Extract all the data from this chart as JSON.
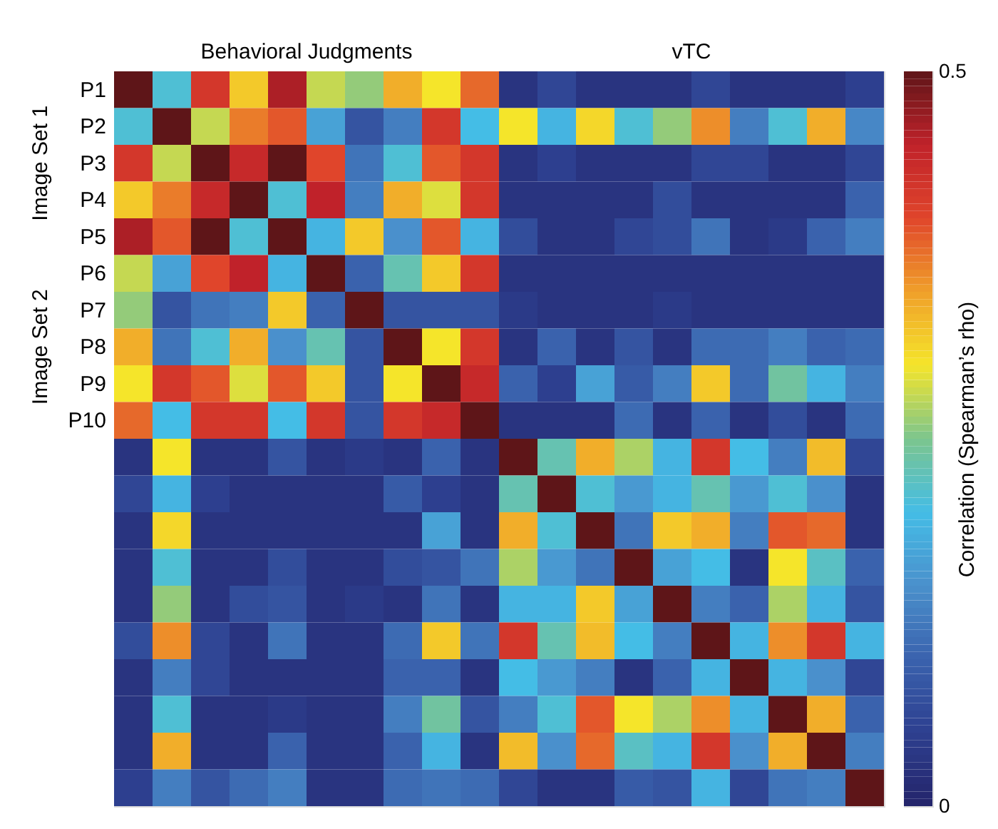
{
  "chart_data": {
    "type": "heatmap",
    "annotations": [
      "Behavioral Judgments",
      "vTC",
      "Image Set 1",
      "Image Set 2"
    ],
    "clabel": "Correlation (Spearman’s rho)",
    "clim": [
      0,
      0.5
    ],
    "cticks": [
      0,
      0.5
    ],
    "categories": [
      null,
      null,
      null,
      null,
      null,
      null,
      null,
      null,
      null,
      null,
      null,
      null,
      null,
      null,
      null,
      null,
      null,
      null,
      null,
      null
    ],
    "y_categories": [
      "P1",
      "P2",
      "P3",
      "P4",
      "P5",
      "P6",
      "P7",
      "P8",
      "P9",
      "P10",
      null,
      null,
      null,
      null,
      null,
      null,
      null,
      null,
      null,
      null
    ],
    "cells": [
      [
        0.5,
        0.21,
        0.42,
        0.32,
        0.46,
        0.28,
        0.26,
        0.34,
        0.3,
        0.38,
        0.03,
        0.06,
        0.03,
        0.03,
        0.03,
        0.06,
        0.03,
        0.03,
        0.03,
        0.05
      ],
      [
        0.21,
        0.5,
        0.28,
        0.37,
        0.39,
        0.17,
        0.08,
        0.13,
        0.42,
        0.2,
        0.3,
        0.19,
        0.31,
        0.21,
        0.26,
        0.36,
        0.13,
        0.21,
        0.34,
        0.14
      ],
      [
        0.42,
        0.28,
        0.5,
        0.44,
        0.5,
        0.4,
        0.12,
        0.21,
        0.39,
        0.42,
        0.03,
        0.05,
        0.03,
        0.03,
        0.03,
        0.06,
        0.06,
        0.03,
        0.03,
        0.06
      ],
      [
        0.32,
        0.37,
        0.44,
        0.5,
        0.21,
        0.45,
        0.13,
        0.34,
        0.29,
        0.42,
        0.03,
        0.03,
        0.03,
        0.03,
        0.07,
        0.03,
        0.03,
        0.03,
        0.03,
        0.1
      ],
      [
        0.46,
        0.39,
        0.5,
        0.21,
        0.5,
        0.19,
        0.32,
        0.15,
        0.39,
        0.19,
        0.07,
        0.03,
        0.03,
        0.06,
        0.07,
        0.12,
        0.03,
        0.04,
        0.1,
        0.13
      ],
      [
        0.28,
        0.17,
        0.4,
        0.45,
        0.19,
        0.5,
        0.1,
        0.23,
        0.32,
        0.42,
        0.03,
        0.03,
        0.03,
        0.03,
        0.03,
        0.03,
        0.03,
        0.03,
        0.03,
        0.03
      ],
      [
        0.26,
        0.08,
        0.12,
        0.13,
        0.32,
        0.1,
        0.5,
        0.08,
        0.08,
        0.08,
        0.04,
        0.03,
        0.03,
        0.03,
        0.04,
        0.03,
        0.03,
        0.03,
        0.03,
        0.03
      ],
      [
        0.34,
        0.12,
        0.21,
        0.34,
        0.15,
        0.23,
        0.08,
        0.5,
        0.3,
        0.42,
        0.03,
        0.1,
        0.03,
        0.08,
        0.03,
        0.11,
        0.11,
        0.13,
        0.1,
        0.11
      ],
      [
        0.3,
        0.42,
        0.39,
        0.29,
        0.39,
        0.32,
        0.08,
        0.3,
        0.5,
        0.44,
        0.1,
        0.05,
        0.17,
        0.09,
        0.13,
        0.32,
        0.11,
        0.24,
        0.19,
        0.13
      ],
      [
        0.38,
        0.2,
        0.42,
        0.42,
        0.2,
        0.42,
        0.08,
        0.42,
        0.44,
        0.5,
        0.03,
        0.03,
        0.03,
        0.11,
        0.03,
        0.1,
        0.03,
        0.07,
        0.03,
        0.11
      ],
      [
        0.03,
        0.3,
        0.03,
        0.03,
        0.08,
        0.03,
        0.04,
        0.03,
        0.1,
        0.03,
        0.5,
        0.23,
        0.34,
        0.27,
        0.19,
        0.42,
        0.2,
        0.13,
        0.33,
        0.06
      ],
      [
        0.06,
        0.19,
        0.05,
        0.03,
        0.03,
        0.03,
        0.03,
        0.09,
        0.05,
        0.03,
        0.23,
        0.5,
        0.21,
        0.16,
        0.19,
        0.23,
        0.16,
        0.21,
        0.15,
        0.03
      ],
      [
        0.03,
        0.31,
        0.03,
        0.03,
        0.03,
        0.03,
        0.03,
        0.03,
        0.17,
        0.03,
        0.34,
        0.21,
        0.5,
        0.12,
        0.32,
        0.34,
        0.13,
        0.39,
        0.38,
        0.03
      ],
      [
        0.03,
        0.21,
        0.03,
        0.03,
        0.07,
        0.03,
        0.03,
        0.07,
        0.08,
        0.12,
        0.27,
        0.16,
        0.12,
        0.5,
        0.17,
        0.2,
        0.03,
        0.3,
        0.22,
        0.1
      ],
      [
        0.03,
        0.26,
        0.03,
        0.07,
        0.08,
        0.03,
        0.04,
        0.03,
        0.12,
        0.03,
        0.19,
        0.19,
        0.32,
        0.17,
        0.5,
        0.13,
        0.1,
        0.27,
        0.19,
        0.08
      ],
      [
        0.07,
        0.36,
        0.06,
        0.03,
        0.12,
        0.03,
        0.03,
        0.11,
        0.32,
        0.12,
        0.42,
        0.23,
        0.33,
        0.2,
        0.13,
        0.5,
        0.19,
        0.36,
        0.42,
        0.19
      ],
      [
        0.03,
        0.13,
        0.06,
        0.03,
        0.03,
        0.03,
        0.03,
        0.1,
        0.1,
        0.03,
        0.2,
        0.16,
        0.13,
        0.03,
        0.1,
        0.19,
        0.5,
        0.19,
        0.15,
        0.06
      ],
      [
        0.03,
        0.21,
        0.03,
        0.03,
        0.04,
        0.03,
        0.03,
        0.13,
        0.24,
        0.08,
        0.13,
        0.21,
        0.39,
        0.3,
        0.27,
        0.36,
        0.19,
        0.5,
        0.34,
        0.1
      ],
      [
        0.03,
        0.34,
        0.03,
        0.03,
        0.1,
        0.03,
        0.03,
        0.1,
        0.19,
        0.03,
        0.33,
        0.15,
        0.38,
        0.22,
        0.19,
        0.42,
        0.15,
        0.34,
        0.5,
        0.13
      ],
      [
        0.05,
        0.13,
        0.08,
        0.11,
        0.13,
        0.03,
        0.03,
        0.11,
        0.12,
        0.11,
        0.06,
        0.03,
        0.03,
        0.09,
        0.08,
        0.19,
        0.06,
        0.12,
        0.13,
        0.5
      ]
    ]
  }
}
